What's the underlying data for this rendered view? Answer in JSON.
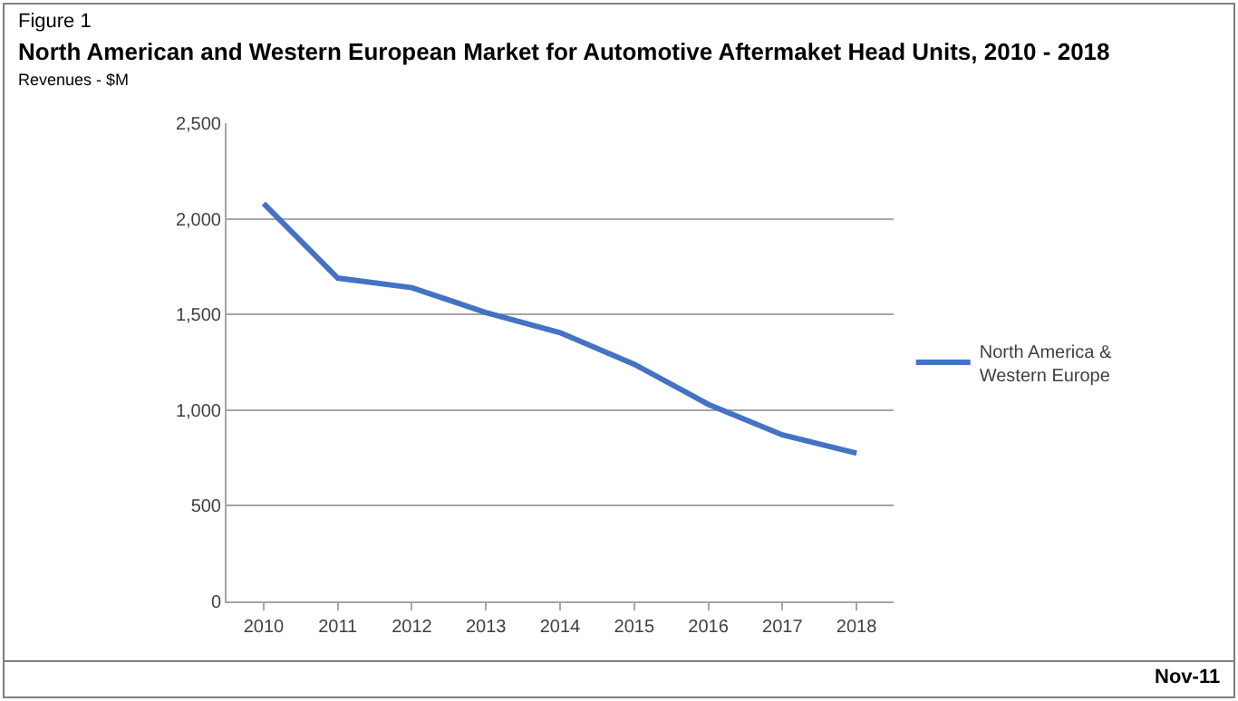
{
  "chart_data": {
    "type": "line",
    "title": "North American and Western European Market for Automotive Aftermaket Head Units, 2010 - 2018",
    "subtitle": "Revenues - $M",
    "annotations": [
      "Figure 1",
      "Nov-11"
    ],
    "categories": [
      "2010",
      "2011",
      "2012",
      "2013",
      "2014",
      "2015",
      "2016",
      "2017",
      "2018"
    ],
    "series": [
      {
        "name": "North America & Western Europe",
        "color": "#4472c4",
        "values": [
          2080,
          1690,
          1640,
          1510,
          1405,
          1240,
          1030,
          870,
          775
        ]
      }
    ],
    "ylim": [
      0,
      2500
    ],
    "yticks": [
      0,
      500,
      {
        "value": 1000,
        "label": "1,000"
      },
      {
        "value": 1500,
        "label": "1,500"
      },
      {
        "value": 2000,
        "label": "2,000"
      },
      {
        "value": 2500,
        "label": "2,500"
      }
    ],
    "grid": "y",
    "legend": "right",
    "marker": "none",
    "line_style": "solid"
  }
}
